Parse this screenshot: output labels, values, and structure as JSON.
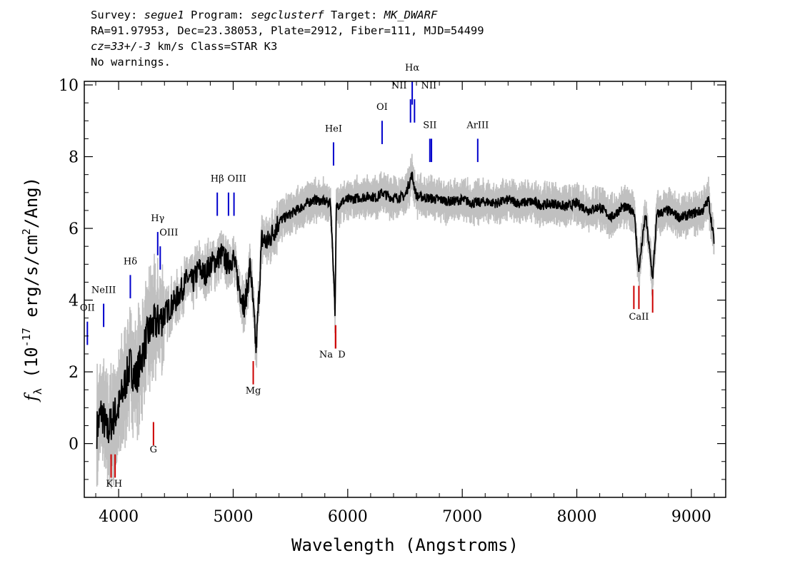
{
  "header": {
    "line1": {
      "survey_label": "Survey: ",
      "survey": "segue1",
      "program_label": " Program: ",
      "program": "segclusterf",
      "target_label": " Target: ",
      "target": "MK_DWARF"
    },
    "line2": "RA=91.97953, Dec=23.38053, Plate=2912, Fiber=111, MJD=54499",
    "line3": {
      "cz": "cz=33+/-3",
      "rest": " km/s Class=STAR K3"
    },
    "line4": "No warnings."
  },
  "colors": {
    "flux": "#000000",
    "error_band": "#c0c0c0",
    "emission_marker": "#0000cc",
    "absorption_marker": "#cc0000"
  },
  "chart_data": {
    "type": "line",
    "title": "",
    "xlabel": "Wavelength (Angstroms)",
    "ylabel": "f_λ (10^-17 erg/s/cm^2/Ang)",
    "xlim": [
      3700,
      9300
    ],
    "ylim": [
      -1.5,
      10.1
    ],
    "x_ticks": [
      4000,
      5000,
      6000,
      7000,
      8000,
      9000
    ],
    "y_ticks": [
      0,
      2,
      4,
      6,
      8,
      10
    ],
    "grid": false,
    "legend": "none",
    "series": [
      {
        "role": "flux",
        "x": [
          3810,
          3850,
          3900,
          3950,
          4000,
          4050,
          4100,
          4150,
          4200,
          4250,
          4300,
          4350,
          4400,
          4450,
          4500,
          4550,
          4600,
          4650,
          4700,
          4750,
          4800,
          4850,
          4900,
          4950,
          5000,
          5050,
          5100,
          5150,
          5200,
          5250,
          5300,
          5400,
          5500,
          5600,
          5700,
          5800,
          5850,
          5880,
          5890,
          5900,
          5950,
          6000,
          6100,
          6200,
          6250,
          6300,
          6350,
          6400,
          6500,
          6560,
          6600,
          6700,
          6800,
          6900,
          7000,
          7100,
          7200,
          7300,
          7400,
          7500,
          7600,
          7700,
          7800,
          7900,
          8000,
          8100,
          8200,
          8300,
          8400,
          8500,
          8540,
          8600,
          8662,
          8700,
          8800,
          8900,
          9000,
          9100,
          9150,
          9200
        ],
        "y": [
          0.4,
          0.9,
          0.3,
          0.7,
          1.0,
          1.6,
          2.2,
          1.8,
          2.4,
          3.0,
          3.3,
          3.4,
          3.6,
          3.8,
          4.0,
          4.3,
          4.6,
          4.5,
          4.9,
          4.7,
          5.0,
          5.1,
          5.3,
          5.0,
          5.2,
          4.4,
          3.8,
          5.0,
          2.6,
          5.7,
          5.6,
          6.2,
          6.4,
          6.6,
          6.8,
          6.75,
          6.7,
          4.5,
          3.6,
          6.6,
          6.75,
          6.8,
          6.85,
          6.9,
          6.85,
          7.0,
          6.9,
          6.85,
          6.9,
          7.5,
          6.9,
          6.85,
          6.8,
          6.75,
          6.8,
          6.7,
          6.75,
          6.7,
          6.8,
          6.7,
          6.75,
          6.65,
          6.7,
          6.6,
          6.7,
          6.5,
          6.6,
          6.3,
          6.6,
          6.5,
          4.8,
          6.4,
          4.6,
          6.4,
          6.5,
          6.3,
          6.4,
          6.5,
          6.8,
          5.6
        ]
      }
    ],
    "emission_lines": [
      {
        "label": "OII",
        "wavelength": 3727,
        "flux": 2.5
      },
      {
        "label": "NeIII",
        "wavelength": 3869,
        "flux": 3.0
      },
      {
        "label": "Hδ",
        "wavelength": 4102,
        "flux": 3.8
      },
      {
        "label": "Hγ",
        "wavelength": 4341,
        "flux": 5.0
      },
      {
        "label": "OIII",
        "wavelength": 4363,
        "flux": 4.6
      },
      {
        "label": "Hβ",
        "wavelength": 4861,
        "flux": 6.1
      },
      {
        "label": "OIII",
        "wavelength": 4959,
        "flux": 6.1
      },
      {
        "label": "OIII",
        "wavelength": 5007,
        "flux": 6.1
      },
      {
        "label": "HeI",
        "wavelength": 5876,
        "flux": 7.5
      },
      {
        "label": "OI",
        "wavelength": 6300,
        "flux": 8.1
      },
      {
        "label": "NII",
        "wavelength": 6548,
        "flux": 8.7
      },
      {
        "label": "Hα",
        "wavelength": 6563,
        "flux": 9.2
      },
      {
        "label": "NII",
        "wavelength": 6583,
        "flux": 8.7
      },
      {
        "label": "SII",
        "wavelength": 6717,
        "flux": 7.6
      },
      {
        "label": "SII",
        "wavelength": 6731,
        "flux": 7.6
      },
      {
        "label": "ArIII",
        "wavelength": 7135,
        "flux": 7.6
      }
    ],
    "absorption_lines": [
      {
        "label": "K",
        "wavelength": 3934,
        "flux": -0.3
      },
      {
        "label": "H",
        "wavelength": 3969,
        "flux": -0.3
      },
      {
        "label": "G",
        "wavelength": 4304,
        "flux": 0.6
      },
      {
        "label": "Mg",
        "wavelength": 5175,
        "flux": 2.3
      },
      {
        "label": "Na",
        "wavelength": 5894,
        "flux": 3.3
      },
      {
        "label": "D",
        "wavelength": 5894,
        "flux": 3.3
      },
      {
        "label": "CaII",
        "wavelength": 8498,
        "flux": 4.4
      },
      {
        "label": "CaII",
        "wavelength": 8542,
        "flux": 4.4
      },
      {
        "label": "CaII",
        "wavelength": 8662,
        "flux": 4.3
      }
    ]
  }
}
